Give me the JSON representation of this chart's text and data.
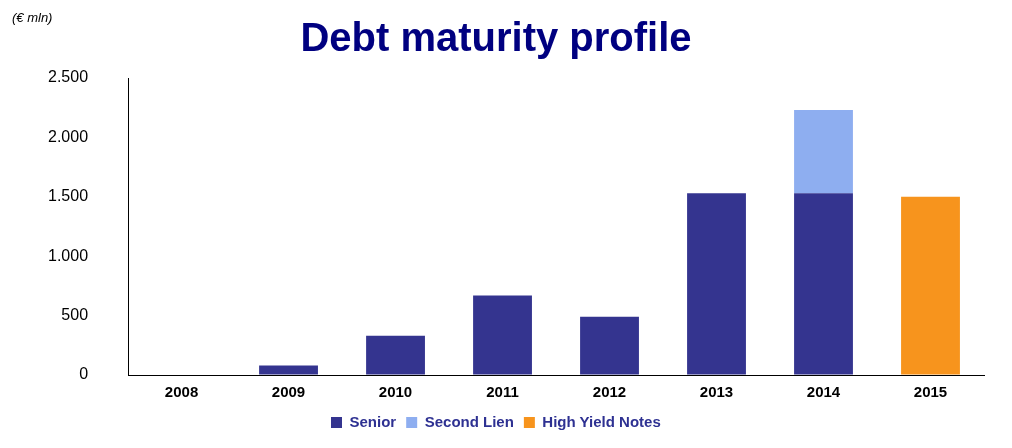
{
  "chart_data": {
    "type": "bar",
    "title": "Debt maturity profile",
    "ylabel": "(€ mln)",
    "categories": [
      "2008",
      "2009",
      "2010",
      "2011",
      "2012",
      "2013",
      "2014",
      "2015"
    ],
    "series": [
      {
        "name": "Senior",
        "color": "#34348f",
        "values": [
          0,
          80,
          330,
          670,
          490,
          1530,
          1530,
          null
        ]
      },
      {
        "name": "Second Lien",
        "color": "#8eaef0",
        "values": [
          null,
          null,
          null,
          null,
          null,
          null,
          700,
          null
        ]
      },
      {
        "name": "High Yield Notes",
        "color": "#f7941d",
        "values": [
          null,
          null,
          null,
          null,
          null,
          null,
          null,
          1500
        ]
      }
    ],
    "stacked": true,
    "ylim": [
      0,
      2500
    ],
    "yticks": [
      {
        "value": 0,
        "label": "0"
      },
      {
        "value": 500,
        "label": "500"
      },
      {
        "value": 1000,
        "label": "1.000"
      },
      {
        "value": 1500,
        "label": "1.500"
      },
      {
        "value": 2000,
        "label": "2.000"
      },
      {
        "value": 2500,
        "label": "2.500"
      }
    ],
    "grid": false,
    "legend": "bottom"
  }
}
